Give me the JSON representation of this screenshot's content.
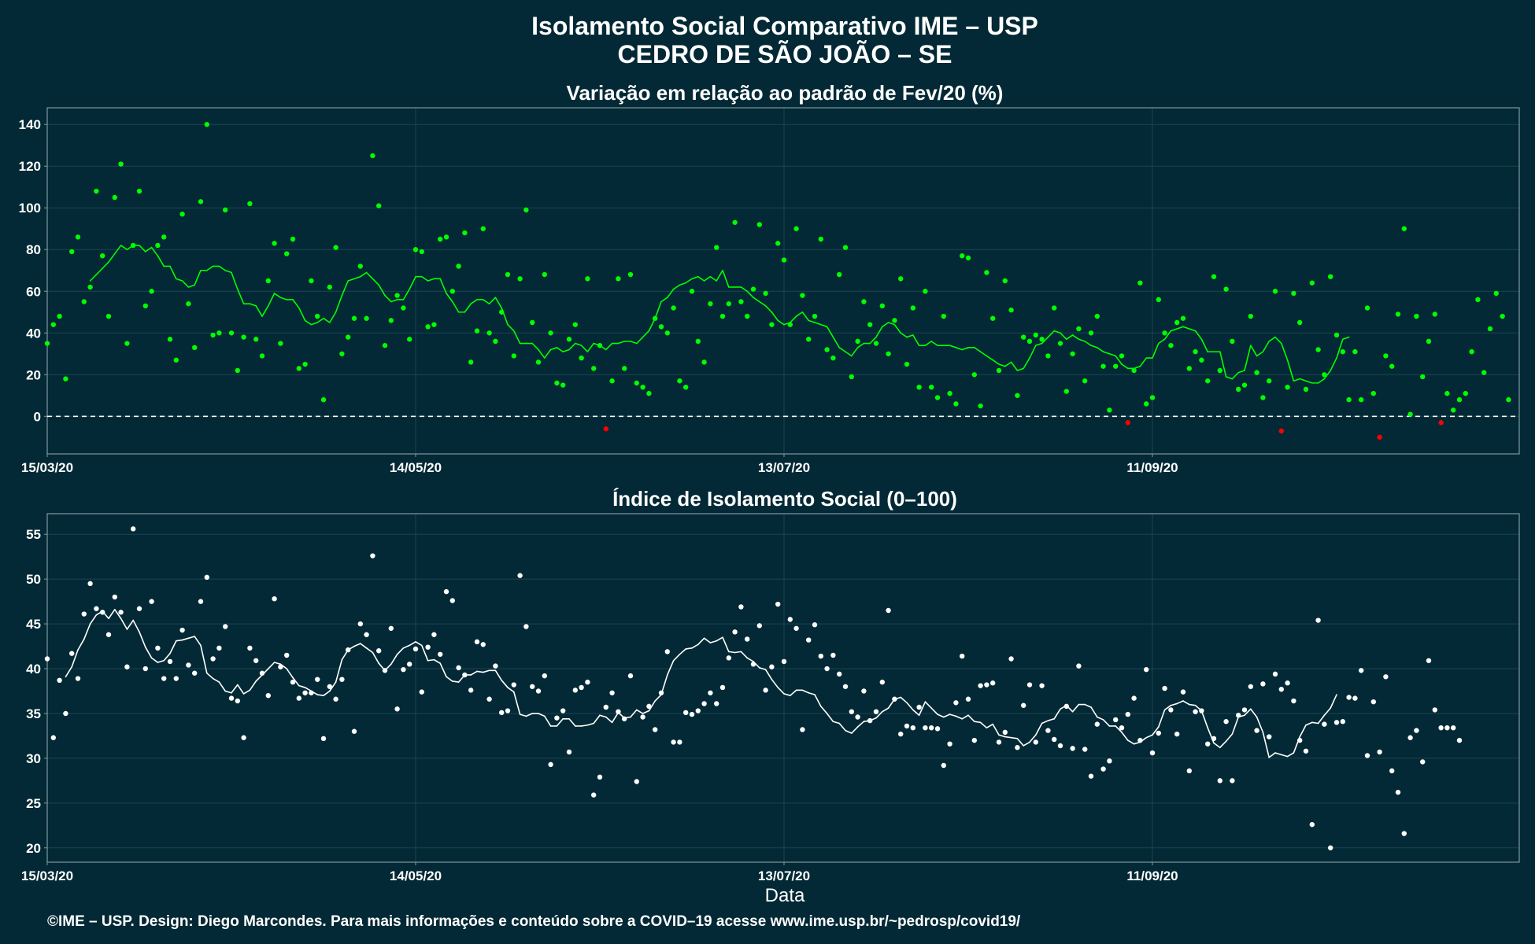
{
  "figure": {
    "title_line1": "Isolamento Social Comparativo IME – USP",
    "title_line2": "CEDRO DE SÃO JOÃO – SE",
    "xlabel": "Data",
    "footer": "©IME – USP. Design: Diego Marcondes. Para mais informações e conteúdo sobre a COVID–19 acesse www.ime.usp.br/~pedrosp/covid19/"
  },
  "colors": {
    "background": "#022935",
    "grid": "#1c4450",
    "axis": "#7f99a0",
    "variation_positive": "#00ff00",
    "variation_negative": "#ff0000",
    "index_points": "#ffffff",
    "zero_line": "#ffffff"
  },
  "chart_data": [
    {
      "type": "scatter",
      "title": "Variação em relação ao padrão de Fev/20 (%)",
      "xlabel": "",
      "ylabel": "",
      "x_start": "15/03/20",
      "x_end": "25/11/20",
      "x_ticks": [
        "15/03/20",
        "14/05/20",
        "13/07/20",
        "11/09/20"
      ],
      "x_tick_day_offsets": [
        0,
        60,
        120,
        180
      ],
      "ylim": [
        -18,
        148
      ],
      "y_ticks": [
        0,
        20,
        40,
        60,
        80,
        100,
        120,
        140
      ],
      "reference_line": 0,
      "grid": true,
      "series": [
        {
          "role": "daily values",
          "values": [
            35,
            44,
            48,
            18,
            79,
            86,
            55,
            62,
            108,
            77,
            48,
            105,
            121,
            35,
            82,
            108,
            53,
            60,
            82,
            86,
            37,
            27,
            97,
            54,
            33,
            103,
            140,
            39,
            40,
            99,
            40,
            22,
            38,
            102,
            37,
            29,
            65,
            83,
            35,
            78,
            85,
            23,
            25,
            65,
            48,
            8,
            62,
            81,
            30,
            38,
            47,
            72,
            47,
            125,
            101,
            34,
            46,
            58,
            52,
            37,
            80,
            79,
            43,
            44,
            85,
            86,
            60,
            72,
            88,
            26,
            41,
            90,
            40,
            36,
            50,
            68,
            29,
            66,
            99,
            45,
            26,
            68,
            40,
            16,
            15,
            37,
            44,
            28,
            66,
            23,
            34,
            -6,
            17,
            66,
            23,
            68,
            16,
            14,
            11,
            47,
            43,
            40,
            52,
            17,
            14,
            60,
            36,
            26,
            54,
            81,
            48,
            54,
            93,
            55,
            48,
            61,
            92,
            59,
            44,
            83,
            75,
            44,
            90,
            58,
            37,
            48,
            85,
            32,
            28,
            68,
            81,
            19,
            36,
            55,
            44,
            35,
            53,
            30,
            46,
            66,
            25,
            52,
            14,
            60,
            14,
            9,
            48,
            11,
            6,
            77,
            76,
            20,
            5,
            69,
            47,
            22,
            65,
            51,
            10,
            38,
            36,
            39,
            37,
            29,
            52,
            35,
            12,
            30,
            42,
            17,
            40,
            48,
            24,
            3,
            24,
            29,
            -3,
            22,
            64,
            6,
            9,
            56,
            40,
            34,
            45,
            47,
            23,
            31,
            27,
            17,
            67,
            22,
            61,
            36,
            13,
            15,
            48,
            21,
            9,
            17,
            60,
            -7,
            14,
            59,
            45,
            13,
            64,
            32,
            20,
            67,
            39,
            31,
            8,
            31,
            8,
            52,
            11,
            -10,
            29,
            24,
            49,
            90,
            1,
            48,
            19,
            36,
            49,
            -3,
            11,
            3,
            8,
            11,
            31,
            56,
            21,
            42,
            59,
            48,
            8
          ]
        },
        {
          "role": "7-day moving average",
          "values": [
            null,
            null,
            null,
            null,
            null,
            null,
            null,
            65,
            68,
            71,
            74,
            78,
            82,
            80,
            82,
            82,
            79,
            81,
            77,
            72,
            72,
            66,
            65,
            62,
            63,
            70,
            70,
            72,
            72,
            70,
            69,
            61,
            54,
            54,
            53,
            48,
            53,
            59,
            57,
            56,
            56,
            52,
            46,
            44,
            45,
            47,
            45,
            50,
            58,
            65,
            66,
            67,
            69,
            66,
            63,
            58,
            55,
            56,
            56,
            61,
            67,
            67,
            65,
            66,
            66,
            59,
            55,
            50,
            50,
            54,
            56,
            56,
            54,
            57,
            52,
            44,
            41,
            35,
            35,
            35,
            32,
            28,
            32,
            33,
            31,
            32,
            35,
            34,
            31,
            35,
            34,
            32,
            35,
            35,
            36,
            36,
            35,
            38,
            41,
            47,
            55,
            57,
            61,
            63,
            64,
            66,
            67,
            65,
            67,
            65,
            70,
            62,
            62,
            62,
            60,
            57,
            55,
            53,
            50,
            46,
            44,
            45,
            48,
            50,
            46,
            45,
            44,
            43,
            38,
            33,
            31,
            29,
            33,
            35,
            35,
            38,
            43,
            45,
            44,
            40,
            38,
            39,
            34,
            34,
            36,
            34,
            34,
            34,
            33,
            32,
            33,
            33,
            31,
            29,
            27,
            25,
            24,
            26,
            22,
            23,
            28,
            34,
            35,
            38,
            41,
            40,
            37,
            39,
            37,
            36,
            34,
            33,
            31,
            30,
            29,
            25,
            23,
            23,
            24,
            28,
            28,
            35,
            37,
            41,
            42,
            43,
            42,
            41,
            37,
            31,
            31,
            31,
            19,
            18,
            21,
            22,
            34,
            29,
            31,
            36,
            38,
            35,
            27,
            17,
            18,
            17,
            16,
            16,
            18,
            22,
            28,
            37,
            38
          ]
        }
      ]
    },
    {
      "type": "scatter",
      "title": "Índice de Isolamento Social (0–100)",
      "xlabel": "Data",
      "ylabel": "",
      "x_start": "15/03/20",
      "x_end": "25/11/20",
      "x_ticks": [
        "15/03/20",
        "14/05/20",
        "13/07/20",
        "11/09/20"
      ],
      "x_tick_day_offsets": [
        0,
        60,
        120,
        180
      ],
      "ylim": [
        18.4,
        57.3
      ],
      "y_ticks": [
        20,
        25,
        30,
        35,
        40,
        45,
        50,
        55
      ],
      "grid": true,
      "series": [
        {
          "role": "daily values",
          "values": [
            41.1,
            32.3,
            38.7,
            35.0,
            41.7,
            38.9,
            46.1,
            49.5,
            46.7,
            46.3,
            43.8,
            48.0,
            46.3,
            40.2,
            55.6,
            46.7,
            40.0,
            47.5,
            42.3,
            38.9,
            40.8,
            38.9,
            44.3,
            40.4,
            39.5,
            47.5,
            50.2,
            41.1,
            42.3,
            44.7,
            36.7,
            36.4,
            32.3,
            42.3,
            40.9,
            39.5,
            37.0,
            47.8,
            40.2,
            41.5,
            38.5,
            36.7,
            37.3,
            37.3,
            38.8,
            32.2,
            38.0,
            36.6,
            38.8,
            42.1,
            33.0,
            45.0,
            43.8,
            52.6,
            42.0,
            39.8,
            44.5,
            35.5,
            39.9,
            40.5,
            42.2,
            37.4,
            42.4,
            43.8,
            41.6,
            48.6,
            47.6,
            40.1,
            39.3,
            37.6,
            43.0,
            42.7,
            36.6,
            40.3,
            35.1,
            35.3,
            38.2,
            50.4,
            44.7,
            38.0,
            37.5,
            39.2,
            29.3,
            34.5,
            35.3,
            30.7,
            37.6,
            37.9,
            38.5,
            25.9,
            27.9,
            35.7,
            37.3,
            35.2,
            34.4,
            39.2,
            27.4,
            34.6,
            35.8,
            33.2,
            37.3,
            41.9,
            31.8,
            31.8,
            35.1,
            34.9,
            35.3,
            36.1,
            37.3,
            36.1,
            37.9,
            41.2,
            44.1,
            46.9,
            43.3,
            40.5,
            44.8,
            37.6,
            40.2,
            47.2,
            40.8,
            45.5,
            44.5,
            33.2,
            43.2,
            44.9,
            41.4,
            40.0,
            41.5,
            39.4,
            38.0,
            35.2,
            34.6,
            37.5,
            34.2,
            35.2,
            38.5,
            46.5,
            36.6,
            32.7,
            33.6,
            33.4,
            35.7,
            33.4,
            33.4,
            33.3,
            29.2,
            31.6,
            36.2,
            41.4,
            36.6,
            32.0,
            38.1,
            38.2,
            38.4,
            31.8,
            32.9,
            41.1,
            31.2,
            35.9,
            38.2,
            31.8,
            38.1,
            33.1,
            32.1,
            31.4,
            35.8,
            31.1,
            40.3,
            31.0,
            28.0,
            33.8,
            28.8,
            29.7,
            34.3,
            33.4,
            34.9,
            36.7,
            32.0,
            39.9,
            30.6,
            32.8,
            37.8,
            35.4,
            32.7,
            37.4,
            28.6,
            35.2,
            35.3,
            31.6,
            32.2,
            27.5,
            34.1,
            27.5,
            34.8,
            35.4,
            38.0,
            33.1,
            38.3,
            32.4,
            39.4,
            37.7,
            38.4,
            36.4,
            32.0,
            30.8,
            22.6,
            45.4,
            33.8,
            20.0,
            34.0,
            34.1,
            36.8,
            36.7,
            39.8,
            30.3,
            36.3,
            30.7,
            39.1,
            28.6,
            26.2,
            21.6,
            32.3,
            33.1,
            29.6,
            40.9,
            35.4,
            33.4,
            33.4,
            33.4,
            32.0
          ]
        },
        {
          "role": "7-day moving average",
          "values": [
            null,
            null,
            null,
            39.1,
            40.2,
            42.1,
            43.3,
            45.0,
            46.0,
            46.4,
            45.6,
            46.6,
            45.6,
            44.4,
            45.4,
            44.1,
            42.4,
            41.2,
            40.7,
            40.9,
            41.7,
            43.1,
            43.2,
            43.4,
            43.6,
            42.6,
            39.5,
            38.9,
            38.5,
            37.5,
            37.3,
            38.2,
            37.2,
            37.6,
            38.6,
            39.3,
            40.0,
            40.7,
            40.5,
            40.0,
            39.0,
            38.1,
            37.9,
            37.5,
            37.1,
            37.0,
            37.5,
            38.5,
            41.0,
            42.1,
            42.5,
            42.8,
            42.3,
            41.8,
            40.6,
            39.8,
            40.5,
            41.6,
            42.3,
            42.6,
            43.0,
            42.6,
            40.9,
            41.0,
            40.6,
            39.1,
            38.6,
            38.5,
            39.3,
            39.3,
            39.7,
            39.6,
            39.8,
            39.8,
            38.7,
            37.9,
            37.4,
            34.9,
            34.7,
            35.0,
            35.0,
            34.7,
            33.6,
            33.6,
            34.4,
            34.4,
            33.6,
            33.6,
            33.7,
            33.9,
            34.8,
            34.6,
            34.0,
            35.1,
            34.5,
            34.6,
            35.4,
            35.0,
            35.3,
            36.4,
            37.1,
            39.3,
            40.9,
            41.6,
            42.2,
            42.3,
            42.7,
            43.4,
            42.9,
            43.1,
            43.5,
            41.9,
            41.8,
            41.9,
            41.2,
            40.8,
            40.1,
            39.9,
            38.8,
            37.9,
            37.2,
            37.0,
            37.6,
            37.6,
            37.3,
            37.1,
            35.8,
            35.0,
            34.1,
            33.9,
            33.1,
            32.8,
            33.5,
            34.1,
            34.2,
            34.5,
            35.2,
            35.6,
            36.6,
            36.8,
            36.2,
            35.4,
            34.8,
            36.3,
            35.6,
            34.9,
            34.6,
            34.9,
            34.7,
            34.4,
            34.8,
            34.1,
            34.0,
            33.4,
            33.8,
            32.6,
            32.4,
            32.3,
            32.2,
            31.4,
            31.8,
            32.6,
            33.9,
            34.2,
            34.4,
            35.5,
            35.9,
            35.2,
            36.0,
            36.0,
            35.7,
            34.6,
            34.3,
            33.6,
            33.6,
            32.9,
            32.0,
            31.6,
            31.8,
            32.3,
            32.6,
            33.5,
            35.4,
            35.9,
            36.1,
            36.4,
            36.0,
            35.9,
            35.3,
            33.4,
            31.7,
            31.2,
            31.9,
            32.7,
            34.6,
            34.8,
            35.5,
            34.6,
            32.9,
            30.1,
            30.6,
            30.4,
            30.2,
            30.6,
            32.4,
            33.7,
            34.0,
            33.9,
            34.8,
            35.6,
            37.1
          ]
        }
      ]
    }
  ]
}
